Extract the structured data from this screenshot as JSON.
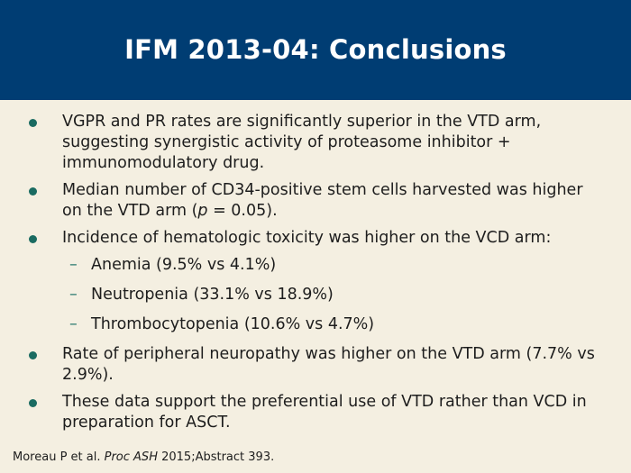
{
  "slide": {
    "title": "IFM 2013-04: Conclusions"
  },
  "bullets": [
    "VGPR and PR rates are significantly superior in the VTD arm, suggesting synergistic activity of proteasome inhibitor + immunomodulatory drug.",
    {
      "before": "Median number of CD34-positive stem cells harvested was higher on the VTD arm (",
      "italic": "p",
      "after": " = 0.05)."
    },
    "Incidence of hematologic toxicity was higher on the VCD arm:",
    "Rate of peripheral neuropathy was higher on the VTD arm (7.7% vs 2.9%).",
    "These data support the preferential use of VTD rather than VCD in preparation for ASCT."
  ],
  "sub_bullets": [
    "Anemia (9.5% vs 4.1%)",
    "Neutropenia (33.1% vs 18.9%)",
    "Thrombocytopenia (10.6% vs 4.7%)"
  ],
  "citation": {
    "authors": "Moreau P et al.",
    "journal": "Proc ASH",
    "details": "2015;Abstract 393."
  },
  "colors": {
    "header_bg": "#003d73",
    "slide_bg": "#f4efe1",
    "bullet_dot": "#1a6b61"
  }
}
